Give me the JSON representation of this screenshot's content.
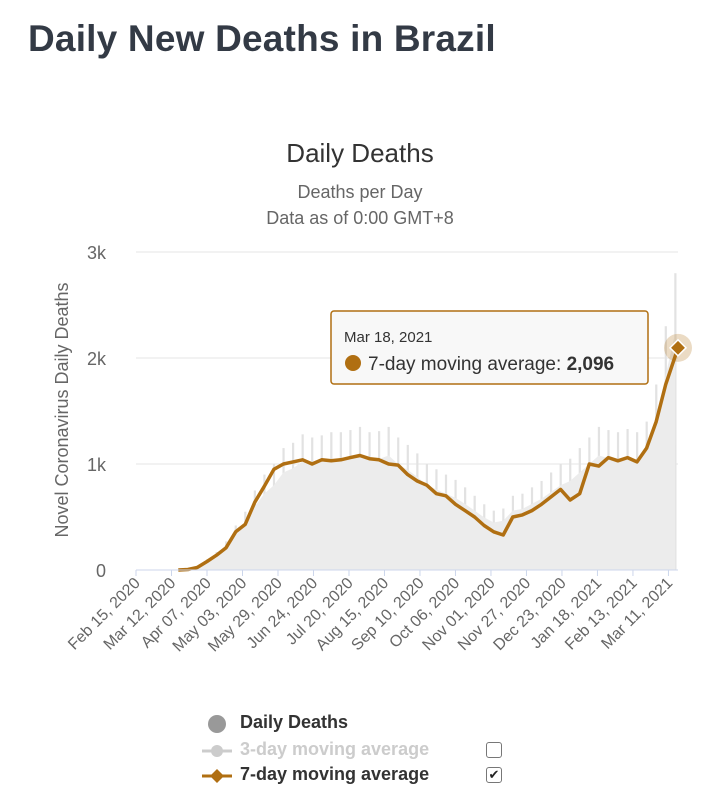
{
  "page": {
    "title": "Daily New Deaths in Brazil"
  },
  "chart_data": {
    "type": "line",
    "title": "Daily Deaths",
    "subtitle_lines": [
      "Deaths per Day",
      "Data as of 0:00 GMT+8"
    ],
    "ylabel": "Novel Coronavirus Daily Deaths",
    "xlabel": "",
    "x_start": "2020-02-15",
    "x_end": "2021-03-18",
    "ylim": [
      0,
      3000
    ],
    "y_ticks": [
      0,
      1000,
      2000,
      3000
    ],
    "y_tick_labels": [
      "0",
      "1k",
      "2k",
      "3k"
    ],
    "x_tick_labels": [
      "Feb 15, 2020",
      "Mar 12, 2020",
      "Apr 07, 2020",
      "May 03, 2020",
      "May 29, 2020",
      "Jun 24, 2020",
      "Jul 20, 2020",
      "Aug 15, 2020",
      "Sep 10, 2020",
      "Oct 06, 2020",
      "Nov 01, 2020",
      "Nov 27, 2020",
      "Dec 23, 2020",
      "Jan 18, 2021",
      "Feb 13, 2021",
      "Mar 11, 2021"
    ],
    "grid": true,
    "series": [
      {
        "name": "Daily Deaths",
        "type": "column",
        "color": "#e2e2e2",
        "visible": true,
        "points": [
          [
            "2020-03-17",
            1
          ],
          [
            "2020-03-24",
            10
          ],
          [
            "2020-03-31",
            40
          ],
          [
            "2020-04-07",
            100
          ],
          [
            "2020-04-14",
            170
          ],
          [
            "2020-04-21",
            270
          ],
          [
            "2020-04-28",
            420
          ],
          [
            "2020-05-05",
            550
          ],
          [
            "2020-05-12",
            750
          ],
          [
            "2020-05-19",
            900
          ],
          [
            "2020-05-26",
            1000
          ],
          [
            "2020-06-02",
            1150
          ],
          [
            "2020-06-09",
            1200
          ],
          [
            "2020-06-16",
            1280
          ],
          [
            "2020-06-23",
            1250
          ],
          [
            "2020-06-30",
            1270
          ],
          [
            "2020-07-07",
            1300
          ],
          [
            "2020-07-14",
            1300
          ],
          [
            "2020-07-21",
            1320
          ],
          [
            "2020-07-28",
            1350
          ],
          [
            "2020-08-04",
            1300
          ],
          [
            "2020-08-11",
            1310
          ],
          [
            "2020-08-18",
            1350
          ],
          [
            "2020-08-25",
            1250
          ],
          [
            "2020-09-01",
            1180
          ],
          [
            "2020-09-08",
            1100
          ],
          [
            "2020-09-15",
            1000
          ],
          [
            "2020-09-22",
            950
          ],
          [
            "2020-09-29",
            900
          ],
          [
            "2020-10-06",
            850
          ],
          [
            "2020-10-13",
            780
          ],
          [
            "2020-10-20",
            700
          ],
          [
            "2020-10-27",
            620
          ],
          [
            "2020-11-03",
            560
          ],
          [
            "2020-11-10",
            580
          ],
          [
            "2020-11-17",
            700
          ],
          [
            "2020-11-24",
            720
          ],
          [
            "2020-12-01",
            780
          ],
          [
            "2020-12-08",
            840
          ],
          [
            "2020-12-15",
            920
          ],
          [
            "2020-12-22",
            1000
          ],
          [
            "2020-12-29",
            1050
          ],
          [
            "2021-01-05",
            1150
          ],
          [
            "2021-01-12",
            1250
          ],
          [
            "2021-01-19",
            1350
          ],
          [
            "2021-01-26",
            1320
          ],
          [
            "2021-02-02",
            1300
          ],
          [
            "2021-02-09",
            1330
          ],
          [
            "2021-02-16",
            1300
          ],
          [
            "2021-02-23",
            1400
          ],
          [
            "2021-03-02",
            1750
          ],
          [
            "2021-03-09",
            2300
          ],
          [
            "2021-03-16",
            2800
          ]
        ]
      },
      {
        "name": "3-day moving average",
        "type": "line",
        "color": "#cccccc",
        "visible": false,
        "checked": false,
        "points": []
      },
      {
        "name": "7-day moving average",
        "type": "line",
        "color": "#b06f12",
        "visible": true,
        "checked": true,
        "points": [
          [
            "2020-03-17",
            0
          ],
          [
            "2020-03-24",
            5
          ],
          [
            "2020-03-31",
            25
          ],
          [
            "2020-04-07",
            80
          ],
          [
            "2020-04-14",
            140
          ],
          [
            "2020-04-21",
            210
          ],
          [
            "2020-04-28",
            360
          ],
          [
            "2020-05-05",
            430
          ],
          [
            "2020-05-12",
            640
          ],
          [
            "2020-05-19",
            790
          ],
          [
            "2020-05-26",
            950
          ],
          [
            "2020-06-02",
            1000
          ],
          [
            "2020-06-09",
            1020
          ],
          [
            "2020-06-16",
            1040
          ],
          [
            "2020-06-23",
            1000
          ],
          [
            "2020-06-30",
            1040
          ],
          [
            "2020-07-07",
            1030
          ],
          [
            "2020-07-14",
            1040
          ],
          [
            "2020-07-21",
            1060
          ],
          [
            "2020-07-28",
            1080
          ],
          [
            "2020-08-04",
            1050
          ],
          [
            "2020-08-11",
            1040
          ],
          [
            "2020-08-18",
            1000
          ],
          [
            "2020-08-25",
            990
          ],
          [
            "2020-09-01",
            900
          ],
          [
            "2020-09-08",
            840
          ],
          [
            "2020-09-15",
            800
          ],
          [
            "2020-09-22",
            720
          ],
          [
            "2020-09-29",
            700
          ],
          [
            "2020-10-06",
            620
          ],
          [
            "2020-10-13",
            560
          ],
          [
            "2020-10-20",
            500
          ],
          [
            "2020-10-27",
            420
          ],
          [
            "2020-11-03",
            360
          ],
          [
            "2020-11-10",
            330
          ],
          [
            "2020-11-17",
            500
          ],
          [
            "2020-11-24",
            520
          ],
          [
            "2020-12-01",
            560
          ],
          [
            "2020-12-08",
            620
          ],
          [
            "2020-12-15",
            690
          ],
          [
            "2020-12-22",
            760
          ],
          [
            "2020-12-29",
            660
          ],
          [
            "2021-01-05",
            720
          ],
          [
            "2021-01-12",
            1000
          ],
          [
            "2021-01-19",
            980
          ],
          [
            "2021-01-26",
            1060
          ],
          [
            "2021-02-02",
            1030
          ],
          [
            "2021-02-09",
            1060
          ],
          [
            "2021-02-16",
            1020
          ],
          [
            "2021-02-23",
            1150
          ],
          [
            "2021-03-02",
            1400
          ],
          [
            "2021-03-09",
            1750
          ],
          [
            "2021-03-18",
            2096
          ]
        ]
      }
    ],
    "tooltip": {
      "date": "Mar 18, 2021",
      "series": "7-day moving average",
      "label": "7-day moving average:",
      "value": "2,096",
      "color": "#b06f12"
    }
  }
}
